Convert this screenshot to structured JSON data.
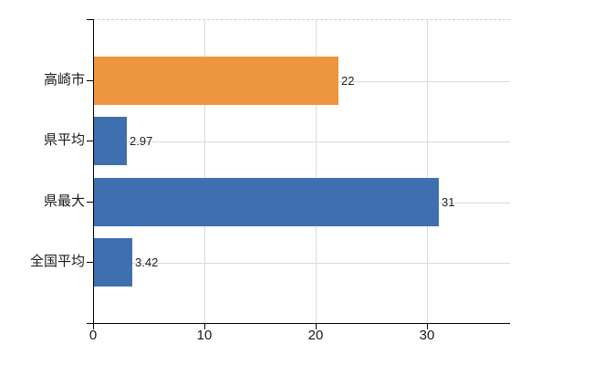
{
  "chart_data": {
    "type": "bar",
    "orientation": "horizontal",
    "title": "",
    "xlabel": "",
    "ylabel": "",
    "categories": [
      "高崎市",
      "県平均",
      "県最大",
      "全国平均"
    ],
    "values": [
      22,
      2.97,
      31,
      3.42
    ],
    "value_labels": [
      "22",
      "2.97",
      "31",
      "3.42"
    ],
    "bar_colors": [
      "#EE9540",
      "#3E70B0",
      "#3E70B0",
      "#3E70B0"
    ],
    "x_ticks": [
      0,
      10,
      20,
      30
    ],
    "x_tick_labels": [
      "0",
      "10",
      "20",
      "30"
    ],
    "xlim": [
      0,
      37.5
    ],
    "grid": true,
    "legend": false,
    "colors": {
      "highlight_bar": "#EE9540",
      "default_bar": "#3E70B0",
      "gridline_horizontal": "#D7DBD7",
      "gridline_vertical": "#DCDCDC",
      "top_border_dashed": "#CFCFCF",
      "axis": "#000000",
      "category_text": "#1A1A1A",
      "tick_text": "#1A1A1A",
      "value_text": "#222222",
      "background": "#FFFFFF"
    }
  }
}
